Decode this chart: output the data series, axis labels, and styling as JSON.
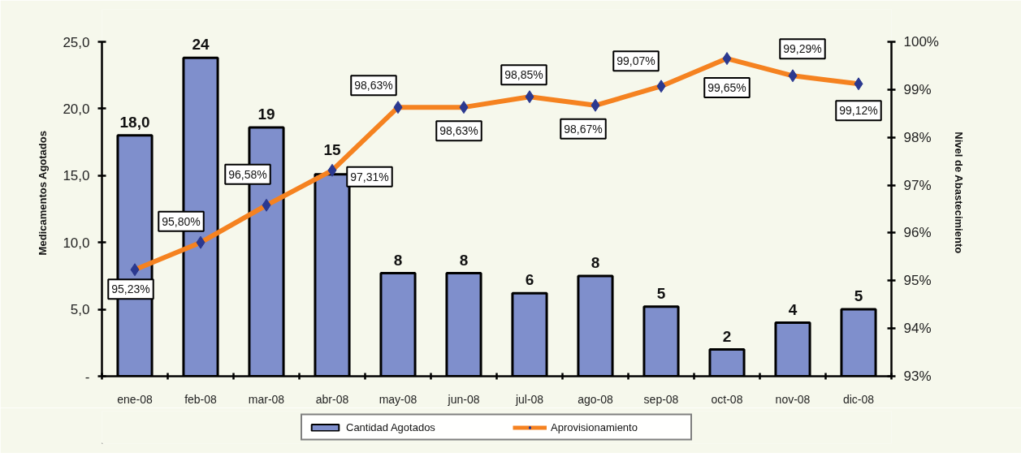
{
  "chart_data": {
    "type": "bar",
    "categories": [
      "ene-08",
      "feb-08",
      "mar-08",
      "abr-08",
      "may-08",
      "jun-08",
      "jul-08",
      "ago-08",
      "sep-08",
      "oct-08",
      "nov-08",
      "dic-08"
    ],
    "ylabel": "Medicamentos Agotados",
    "y2label": "Nivel de Abastecimiento",
    "ylim": [
      0,
      25
    ],
    "yticks": [
      {
        "value": 0,
        "label": "-"
      },
      {
        "value": 5,
        "label": "5,0"
      },
      {
        "value": 10,
        "label": "10,0"
      },
      {
        "value": 15,
        "label": "15,0"
      },
      {
        "value": 20,
        "label": "20,0"
      },
      {
        "value": 25,
        "label": "25,0"
      }
    ],
    "y2lim": [
      93,
      100
    ],
    "y2ticks": [
      {
        "value": 93,
        "label": "93%"
      },
      {
        "value": 94,
        "label": "94%"
      },
      {
        "value": 95,
        "label": "95%"
      },
      {
        "value": 96,
        "label": "96%"
      },
      {
        "value": 97,
        "label": "97%"
      },
      {
        "value": 98,
        "label": "98%"
      },
      {
        "value": 99,
        "label": "99%"
      },
      {
        "value": 100,
        "label": "100%"
      }
    ],
    "series": [
      {
        "name": "Cantidad Agotados",
        "color": "#7f8fcc",
        "values": [
          18.0,
          23.8,
          18.6,
          15.1,
          7.7,
          7.7,
          6.2,
          7.5,
          5.2,
          2.0,
          4.0,
          5.0
        ],
        "value_labels": [
          "18,0",
          "24",
          "19",
          "15",
          "8",
          "8",
          "6",
          "8",
          "5",
          "2",
          "4",
          "5"
        ]
      },
      {
        "name": "Aprovisionamiento",
        "type": "line",
        "axis": "y2",
        "color": "#f58220",
        "values": [
          95.23,
          95.8,
          96.58,
          97.31,
          98.63,
          98.63,
          98.85,
          98.67,
          99.07,
          99.65,
          99.29,
          99.12
        ],
        "value_labels": [
          "95,23%",
          "95,80%",
          "96,58%",
          "97,31%",
          "98,63%",
          "98,63%",
          "98,85%",
          "98,67%",
          "99,07%",
          "99,65%",
          "99,29%",
          "99,12%"
        ]
      }
    ],
    "legend": "bottom",
    "marker": "diamond",
    "line_style": "solid"
  }
}
